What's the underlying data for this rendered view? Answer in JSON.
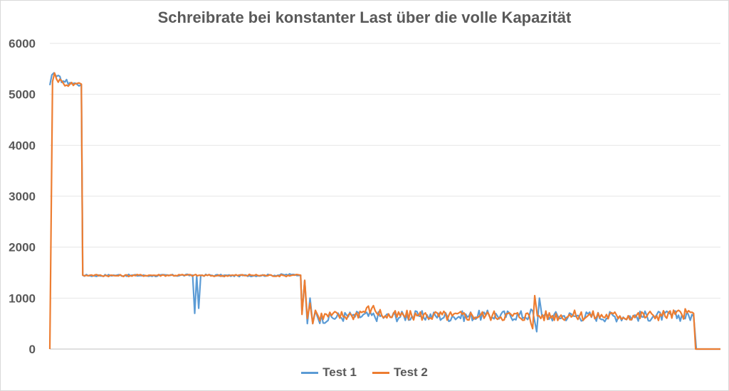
{
  "chart_data": {
    "type": "line",
    "title": "Schreibrate bei konstanter Last über die volle Kapazität",
    "xlabel": "",
    "ylabel": "",
    "ylim": [
      0,
      6000
    ],
    "y_ticks": [
      "0",
      "1000",
      "2000",
      "3000",
      "4000",
      "5000",
      "6000"
    ],
    "grid": true,
    "legend": "bottom",
    "x_range": [
      0,
      100
    ],
    "series": [
      {
        "name": "Test 1",
        "color": "#5b9bd5",
        "points": [
          [
            0,
            5180
          ],
          [
            0.3,
            5380
          ],
          [
            0.6,
            5420
          ],
          [
            1,
            5350
          ],
          [
            2,
            5260
          ],
          [
            3,
            5230
          ],
          [
            4,
            5200
          ],
          [
            4.7,
            5190
          ],
          [
            4.9,
            1450
          ],
          [
            6,
            1440
          ],
          [
            10,
            1450
          ],
          [
            15,
            1440
          ],
          [
            21.3,
            1450
          ],
          [
            21.6,
            700
          ],
          [
            21.9,
            1440
          ],
          [
            22.2,
            800
          ],
          [
            22.5,
            1450
          ],
          [
            28,
            1440
          ],
          [
            33,
            1450
          ],
          [
            36,
            1460
          ],
          [
            37.4,
            1450
          ],
          [
            37.6,
            700
          ],
          [
            38,
            1350
          ],
          [
            38.4,
            500
          ],
          [
            38.8,
            1000
          ],
          [
            39.2,
            500
          ],
          [
            39.6,
            750
          ],
          [
            40,
            600
          ],
          [
            45,
            650
          ],
          [
            50,
            640
          ],
          [
            55,
            650
          ],
          [
            60,
            640
          ],
          [
            65,
            660
          ],
          [
            71.5,
            660
          ],
          [
            72,
            750
          ],
          [
            72.6,
            340
          ],
          [
            73,
            1000
          ],
          [
            73.4,
            640
          ],
          [
            78,
            650
          ],
          [
            85,
            640
          ],
          [
            90,
            650
          ],
          [
            96,
            650
          ],
          [
            96.4,
            0
          ],
          [
            100,
            0
          ]
        ],
        "noise": 80
      },
      {
        "name": "Test 2",
        "color": "#ed7d31",
        "points": [
          [
            0,
            0
          ],
          [
            0.4,
            5250
          ],
          [
            0.7,
            5420
          ],
          [
            1,
            5300
          ],
          [
            2,
            5220
          ],
          [
            3,
            5200
          ],
          [
            4,
            5210
          ],
          [
            4.7,
            5200
          ],
          [
            4.9,
            1450
          ],
          [
            6,
            1450
          ],
          [
            10,
            1440
          ],
          [
            15,
            1450
          ],
          [
            20,
            1450
          ],
          [
            25,
            1440
          ],
          [
            30,
            1450
          ],
          [
            35,
            1440
          ],
          [
            37,
            1460
          ],
          [
            37.4,
            1450
          ],
          [
            37.6,
            680
          ],
          [
            38,
            1350
          ],
          [
            38.4,
            600
          ],
          [
            38.8,
            900
          ],
          [
            39.2,
            500
          ],
          [
            39.6,
            760
          ],
          [
            40,
            650
          ],
          [
            45,
            660
          ],
          [
            48,
            800
          ],
          [
            50,
            650
          ],
          [
            55,
            660
          ],
          [
            60,
            650
          ],
          [
            65,
            660
          ],
          [
            71.5,
            650
          ],
          [
            72,
            400
          ],
          [
            72.3,
            1050
          ],
          [
            72.7,
            650
          ],
          [
            78,
            660
          ],
          [
            85,
            650
          ],
          [
            90,
            660
          ],
          [
            96,
            700
          ],
          [
            96.3,
            0
          ],
          [
            100,
            0
          ]
        ],
        "noise": 80
      }
    ]
  }
}
